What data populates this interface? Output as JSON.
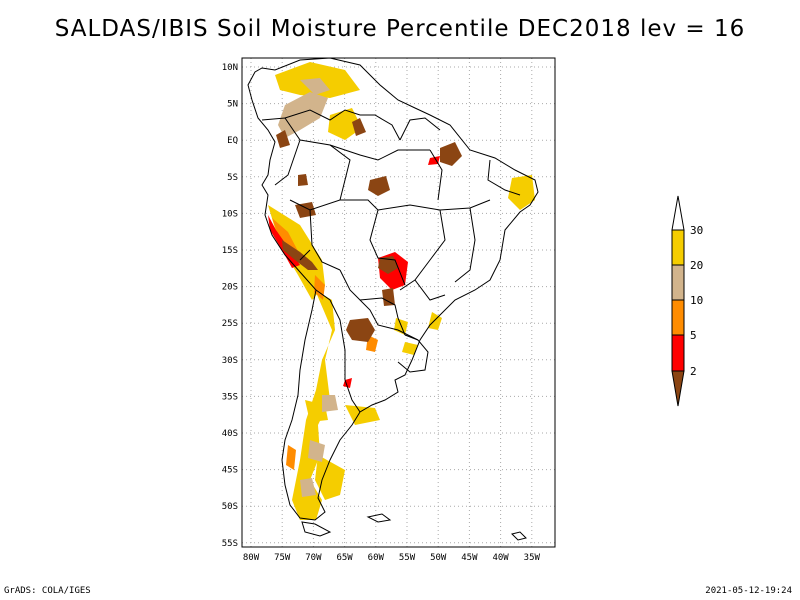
{
  "title": "SALDAS/IBIS Soil Moisture Percentile DEC2018 lev = 16",
  "footer": {
    "left": "GrADS: COLA/IGES",
    "right": "2021-05-12-19:24"
  },
  "map": {
    "lat_labels": [
      "10N",
      "5N",
      "EQ",
      "5S",
      "10S",
      "15S",
      "20S",
      "25S",
      "30S",
      "35S",
      "40S",
      "45S",
      "50S",
      "55S"
    ],
    "lon_labels": [
      "80W",
      "75W",
      "70W",
      "65W",
      "60W",
      "55W",
      "50W",
      "45W",
      "40W",
      "35W"
    ],
    "grid": "dotted"
  },
  "colorbar": {
    "labels": [
      "30",
      "20",
      "10",
      "5",
      "2"
    ],
    "colors": {
      "above30": "#ffffff",
      "c20_30": "#f5cd00",
      "c10_20": "#d2b48c",
      "c5_10": "#ff8c00",
      "c2_5": "#ff0000",
      "below2": "#8b4513"
    }
  }
}
